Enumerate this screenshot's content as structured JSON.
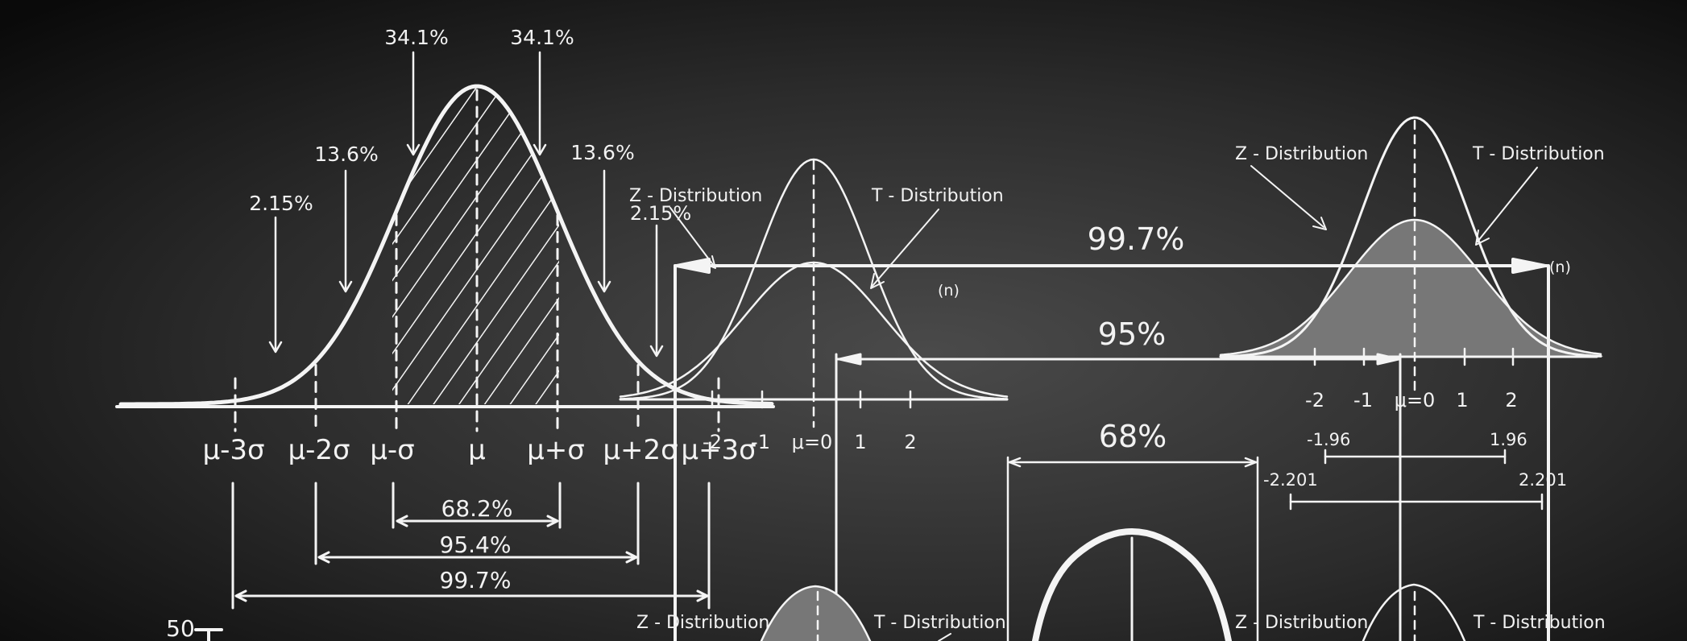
{
  "normal_diagram": {
    "top_pct_left": "34.1%",
    "top_pct_right": "34.1%",
    "mid_pct_left": "13.6%",
    "mid_pct_right": "13.6%",
    "tail_pct_left": "2.15%",
    "tail_pct_right": "2.15%",
    "axis_labels": [
      "μ-3σ",
      "μ-2σ",
      "μ-σ",
      "μ",
      "μ+σ",
      "μ+2σ",
      "μ+3σ"
    ],
    "range_68": "68.2%",
    "range_95": "95.4%",
    "range_997": "99.7%",
    "scale_value": "50"
  },
  "dist_top_middle": {
    "z_label": "Z - Distribution",
    "t_label": "T - Distribution",
    "n_label": "(n)",
    "ticks": [
      "-2",
      "-1",
      "μ=0",
      "1",
      "2"
    ]
  },
  "dist_top_right": {
    "z_label": "Z - Distribution",
    "t_label": "T - Distribution",
    "n_label": "(n)",
    "ticks": [
      "-2",
      "-1",
      "μ=0",
      "1",
      "2"
    ],
    "z_crit_left": "-1.96",
    "z_crit_right": "1.96",
    "t_crit_left": "-2.201",
    "t_crit_right": "2.201"
  },
  "intervals": {
    "p997": "99.7%",
    "p95": "95%",
    "p68": "68%"
  },
  "bottom_left": {
    "z_label": "Z - Distribution",
    "t_label": "T - Distribution"
  },
  "bottom_right": {
    "z_label": "Z - Distribution",
    "t_label": "T - Distribution"
  },
  "colors": {
    "board": "#111111",
    "chalk": "#f4f4f4",
    "fill_gray": "#7a7a7a"
  }
}
